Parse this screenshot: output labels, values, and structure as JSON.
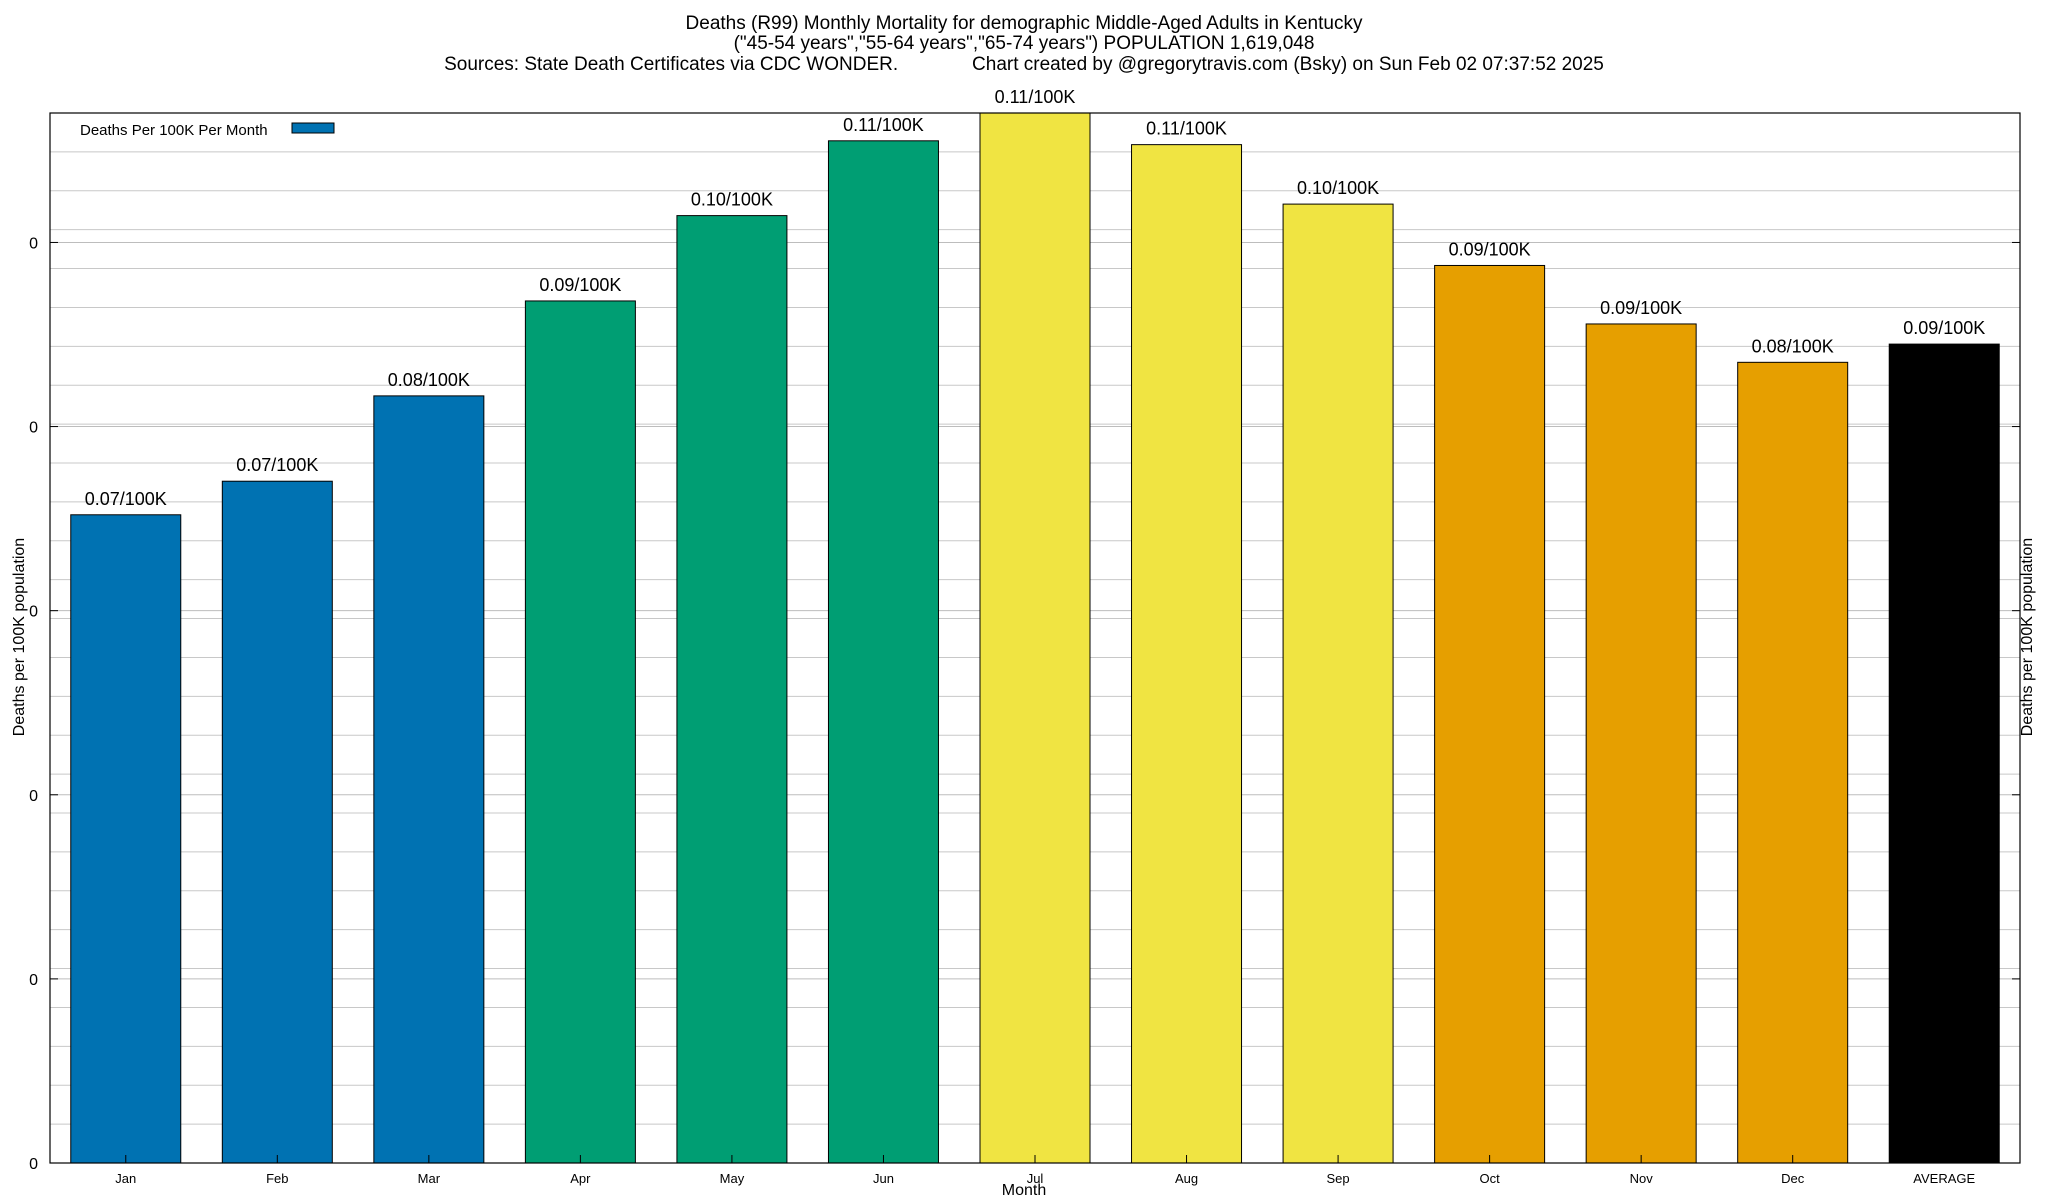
{
  "title": {
    "line1": "Deaths (R99) Monthly Mortality for demographic Middle-Aged Adults in Kentucky",
    "line2": "(\"45-54 years\",\"55-64 years\",\"65-74 years\") POPULATION 1,619,048",
    "line3": "Sources: State Death Certificates via CDC WONDER.              Chart created by @gregorytravis.com (Bsky) on Sun Feb 02 07:37:52 2025"
  },
  "chart_data": {
    "type": "bar",
    "title": "Deaths (R99) Monthly Mortality for demographic Middle-Aged Adults in Kentucky",
    "xlabel": "Month",
    "ylabel": "Deaths per 100K population",
    "ylim": [
      0,
      0.1095
    ],
    "y_tick_labels": [
      "0",
      "0",
      "0",
      "0",
      "0",
      "0"
    ],
    "grid": true,
    "legend": {
      "label": "Deaths Per 100K Per Month",
      "placement": "top-left",
      "color": "#0072b2"
    },
    "categories": [
      "Jan",
      "Feb",
      "Mar",
      "Apr",
      "May",
      "Jun",
      "Jul",
      "Aug",
      "Sep",
      "Oct",
      "Nov",
      "Dec",
      "AVERAGE"
    ],
    "values": [
      0.0676,
      0.0711,
      0.08,
      0.0899,
      0.0988,
      0.1066,
      0.1095,
      0.1062,
      0.1,
      0.0936,
      0.0875,
      0.0835,
      0.0854
    ],
    "data_labels": [
      "0.07/100K",
      "0.07/100K",
      "0.08/100K",
      "0.09/100K",
      "0.10/100K",
      "0.11/100K",
      "0.11/100K",
      "0.11/100K",
      "0.10/100K",
      "0.09/100K",
      "0.09/100K",
      "0.08/100K",
      "0.09/100K"
    ],
    "colors": [
      "#0072b2",
      "#0072b2",
      "#0072b2",
      "#009e73",
      "#009e73",
      "#009e73",
      "#f0e442",
      "#f0e442",
      "#f0e442",
      "#e69f00",
      "#e69f00",
      "#e69f00",
      "#000000"
    ]
  }
}
